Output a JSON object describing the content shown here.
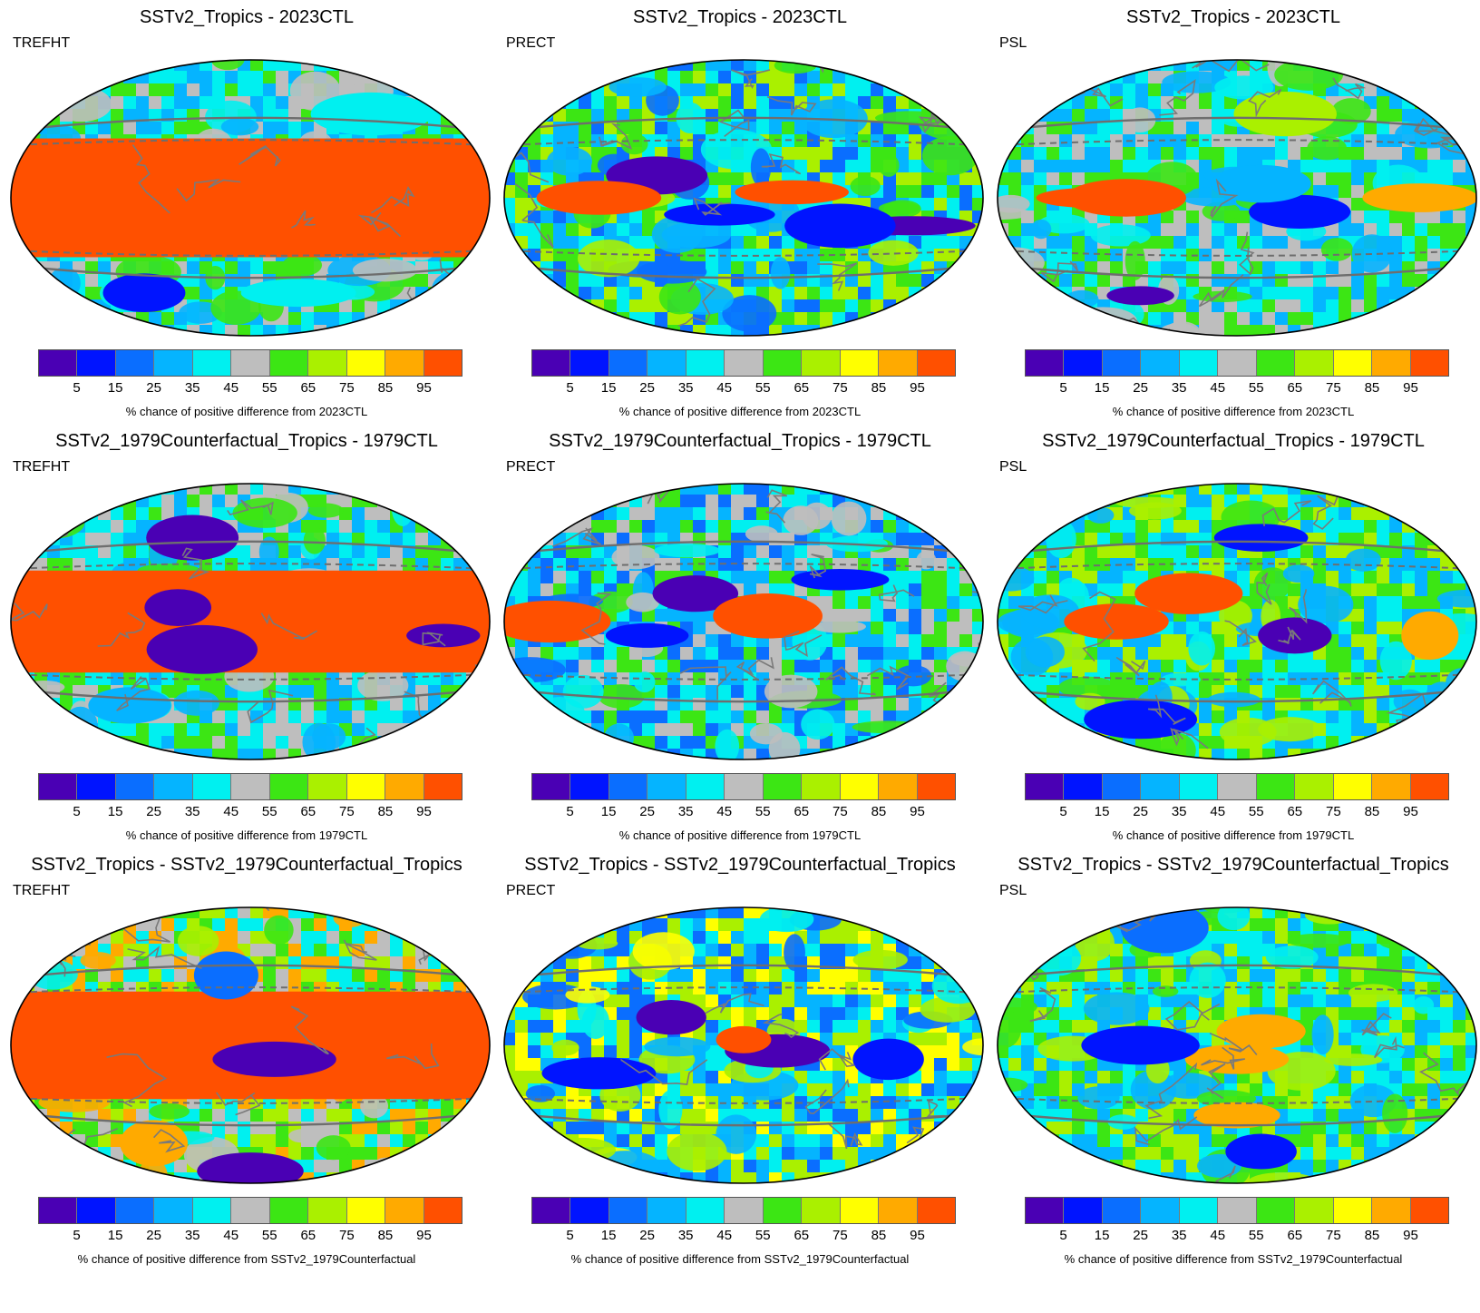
{
  "colorbar": {
    "colors": [
      "#4a00b4",
      "#0014ff",
      "#0a6eff",
      "#05b4ff",
      "#00f0f0",
      "#bebebe",
      "#3ce614",
      "#aaf000",
      "#ffff00",
      "#ffaa00",
      "#ff5000"
    ],
    "ticks": [
      "5",
      "15",
      "25",
      "35",
      "45",
      "55",
      "65",
      "75",
      "85",
      "95"
    ]
  },
  "panels": [
    {
      "title": "SSTv2_Tropics - 2023CTL",
      "variable": "TREFHT",
      "caption": "% chance of positive difference from 2023CTL"
    },
    {
      "title": "SSTv2_Tropics - 2023CTL",
      "variable": "PRECT",
      "caption": "% chance of positive difference from 2023CTL"
    },
    {
      "title": "SSTv2_Tropics - 2023CTL",
      "variable": "PSL",
      "caption": "% chance of positive difference from 2023CTL"
    },
    {
      "title": "SSTv2_1979Counterfactual_Tropics - 1979CTL",
      "variable": "TREFHT",
      "caption": "% chance of positive difference from 1979CTL"
    },
    {
      "title": "SSTv2_1979Counterfactual_Tropics - 1979CTL",
      "variable": "PRECT",
      "caption": "% chance of positive difference from 1979CTL"
    },
    {
      "title": "SSTv2_1979Counterfactual_Tropics - 1979CTL",
      "variable": "PSL",
      "caption": "% chance of positive difference from 1979CTL"
    },
    {
      "title": "SSTv2_Tropics - SSTv2_1979Counterfactual_Tropics",
      "variable": "TREFHT",
      "caption": "% chance of positive difference from SSTv2_1979Counterfactual"
    },
    {
      "title": "SSTv2_Tropics - SSTv2_1979Counterfactual_Tropics",
      "variable": "PRECT",
      "caption": "% chance of positive difference from SSTv2_1979Counterfactual"
    },
    {
      "title": "SSTv2_Tropics - SSTv2_1979Counterfactual_Tropics",
      "variable": "PSL",
      "caption": "% chance of positive difference from SSTv2_1979Counterfactual"
    }
  ]
}
